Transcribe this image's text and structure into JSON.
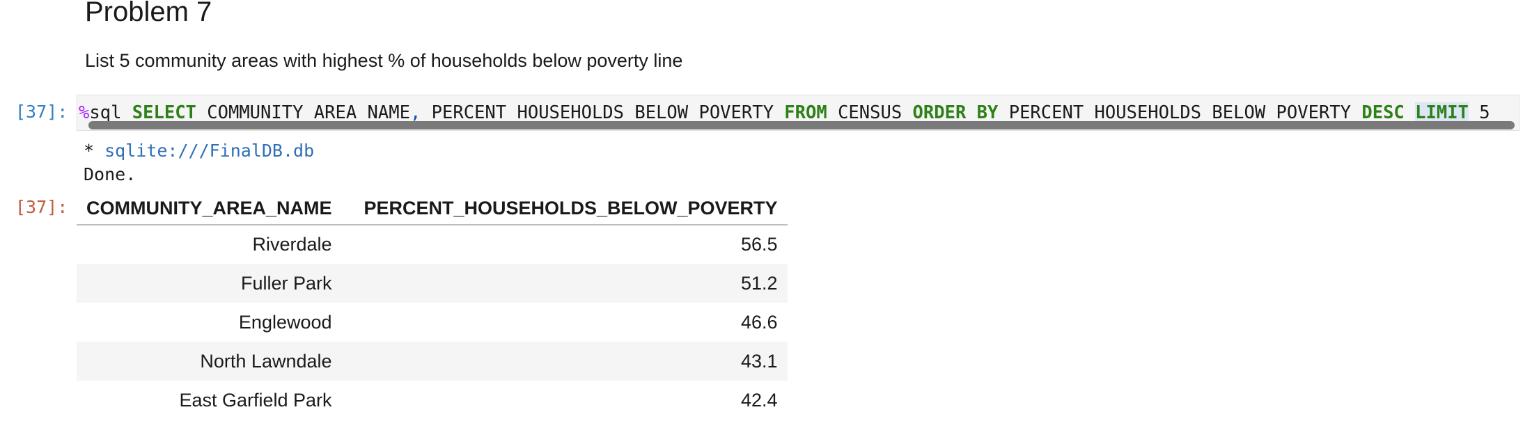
{
  "markdown": {
    "heading": "Problem 7",
    "description": "List 5 community areas with highest % of households below poverty line"
  },
  "code_cell": {
    "prompt": "[37]:",
    "tokens": {
      "magic": "%",
      "sql": "sql ",
      "select": "SELECT",
      "col_a": " COMMUNITY_AREA_NAME",
      "comma": ",",
      "col_b": " PERCENT_HOUSEHOLDS_BELOW_POVERTY ",
      "from": "FROM",
      "table": " CENSUS ",
      "order_by": "ORDER BY",
      "order_col": " PERCENT_HOUSEHOLDS_BELOW_POVERTY ",
      "desc": "DESC",
      "space": " ",
      "limit": "LIMIT",
      "limit_val": " 5"
    }
  },
  "output": {
    "star": " * ",
    "db_link": "sqlite:///FinalDB.db",
    "done": "Done.",
    "prompt": "[37]:",
    "table": {
      "headers": [
        "COMMUNITY_AREA_NAME",
        "PERCENT_HOUSEHOLDS_BELOW_POVERTY"
      ],
      "rows": [
        [
          "Riverdale",
          "56.5"
        ],
        [
          "Fuller Park",
          "51.2"
        ],
        [
          "Englewood",
          "46.6"
        ],
        [
          "North Lawndale",
          "43.1"
        ],
        [
          "East Garfield Park",
          "42.4"
        ]
      ]
    }
  },
  "colors": {
    "prompt_in": "#307fc1",
    "prompt_out": "#bf5b3d",
    "sql_keyword": "#2e8018",
    "magic": "#aa22ff",
    "link": "#2f6fb6",
    "row_stripe": "#f5f5f5"
  }
}
